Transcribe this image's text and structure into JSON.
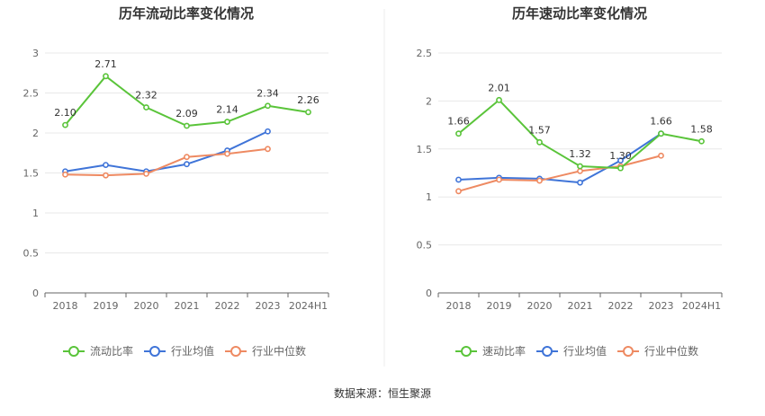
{
  "source": "数据来源：恒生聚源",
  "colors": {
    "primary": "#5ac43a",
    "industry_avg": "#3f74d8",
    "industry_median": "#ee8a62",
    "grid": "#e8e8e8",
    "axis": "#666666"
  },
  "chart_data": [
    {
      "type": "line",
      "title": "历年流动比率变化情况",
      "categories": [
        "2018",
        "2019",
        "2020",
        "2021",
        "2022",
        "2023",
        "2024H1"
      ],
      "ylim": [
        0,
        3
      ],
      "yticks": [
        "0",
        "0.5",
        "1",
        "1.5",
        "2",
        "2.5",
        "3"
      ],
      "ytick_values": [
        0,
        0.5,
        1,
        1.5,
        2,
        2.5,
        3
      ],
      "grid": true,
      "legend_position": "bottom",
      "series": [
        {
          "name": "流动比率",
          "color": "#5ac43a",
          "labels": true,
          "values": [
            2.1,
            2.71,
            2.32,
            2.09,
            2.14,
            2.34,
            2.26
          ],
          "value_labels": [
            "2.10",
            "2.71",
            "2.32",
            "2.09",
            "2.14",
            "2.34",
            "2.26"
          ]
        },
        {
          "name": "行业均值",
          "color": "#3f74d8",
          "labels": false,
          "values": [
            1.52,
            1.6,
            1.52,
            1.61,
            1.78,
            2.02,
            null
          ]
        },
        {
          "name": "行业中位数",
          "color": "#ee8a62",
          "labels": false,
          "values": [
            1.48,
            1.47,
            1.49,
            1.7,
            1.74,
            1.8,
            null
          ]
        }
      ]
    },
    {
      "type": "line",
      "title": "历年速动比率变化情况",
      "categories": [
        "2018",
        "2019",
        "2020",
        "2021",
        "2022",
        "2023",
        "2024H1"
      ],
      "ylim": [
        0,
        2.5
      ],
      "yticks": [
        "0",
        "0.5",
        "1",
        "1.5",
        "2",
        "2.5"
      ],
      "ytick_values": [
        0,
        0.5,
        1,
        1.5,
        2,
        2.5
      ],
      "grid": true,
      "legend_position": "bottom",
      "series": [
        {
          "name": "速动比率",
          "color": "#5ac43a",
          "labels": true,
          "values": [
            1.66,
            2.01,
            1.57,
            1.32,
            1.3,
            1.66,
            1.58
          ],
          "value_labels": [
            "1.66",
            "2.01",
            "1.57",
            "1.32",
            "1.30",
            "1.66",
            "1.58"
          ]
        },
        {
          "name": "行业均值",
          "color": "#3f74d8",
          "labels": false,
          "values": [
            1.18,
            1.2,
            1.19,
            1.15,
            1.38,
            1.66,
            null
          ]
        },
        {
          "name": "行业中位数",
          "color": "#ee8a62",
          "labels": false,
          "values": [
            1.06,
            1.18,
            1.17,
            1.27,
            1.32,
            1.43,
            null
          ]
        }
      ]
    }
  ]
}
